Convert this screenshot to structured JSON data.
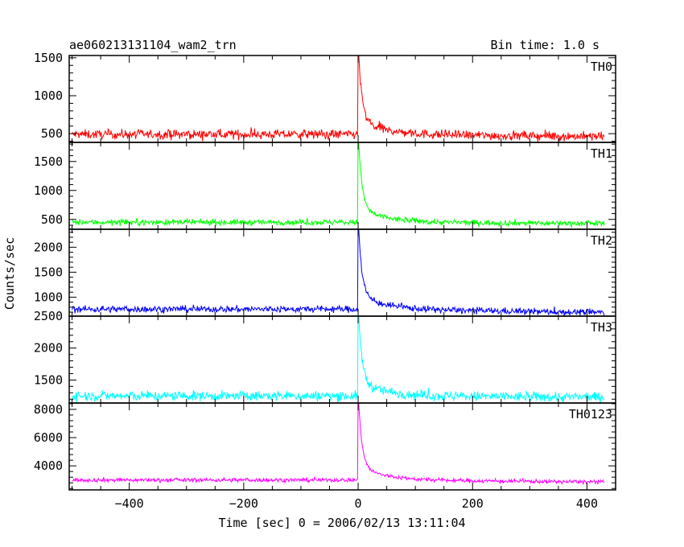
{
  "header": {
    "title": "ae060213131104_wam2_trn",
    "bin_time": "Bin time: 1.0 s"
  },
  "axes": {
    "ylabel": "Counts/sec",
    "xlabel": "Time [sec] 0 = 2006/02/13 13:11:04"
  },
  "chart_data": {
    "type": "line",
    "x_range": [
      -505,
      450
    ],
    "x_data_range": [
      -500,
      430
    ],
    "x_ticks": [
      -400,
      -200,
      0,
      200,
      400
    ],
    "x_tick_labels": [
      "−400",
      "−200",
      "0",
      "200",
      "400"
    ],
    "grid": false,
    "panels": [
      {
        "name": "TH0",
        "color": "#ff0000",
        "ylim": [
          385,
          1530
        ],
        "y_ticks": [
          500,
          1000,
          1500
        ],
        "y_tick_labels": [
          "500",
          "1000",
          "1500"
        ],
        "baseline_pre": 490,
        "baseline_post": 460,
        "peak": 1530,
        "noise": 55
      },
      {
        "name": "TH1",
        "color": "#00ff00",
        "ylim": [
          330,
          1830
        ],
        "y_ticks": [
          500,
          1000,
          1500
        ],
        "y_tick_labels": [
          "500",
          "1000",
          "1500"
        ],
        "baseline_pre": 450,
        "baseline_post": 430,
        "peak": 1830,
        "noise": 45
      },
      {
        "name": "TH2",
        "color": "#0000ff",
        "ylim": [
          620,
          2360
        ],
        "y_ticks": [
          1000,
          1500,
          2000
        ],
        "y_tick_labels": [
          "1000",
          "1500",
          "2000"
        ],
        "baseline_pre": 760,
        "baseline_post": 690,
        "peak": 2360,
        "noise": 60
      },
      {
        "name": "TH3",
        "color": "#00ffff",
        "ylim": [
          1140,
          2500
        ],
        "y_ticks": [
          1500,
          2000,
          2500
        ],
        "y_tick_labels": [
          "1500",
          "2000",
          "2500"
        ],
        "baseline_pre": 1250,
        "baseline_post": 1230,
        "peak": 2500,
        "noise": 70
      },
      {
        "name": "TH0123",
        "color": "#ff00ff",
        "ylim": [
          2300,
          8450
        ],
        "y_ticks": [
          4000,
          6000,
          8000
        ],
        "y_tick_labels": [
          "4000",
          "6000",
          "8000"
        ],
        "baseline_pre": 3000,
        "baseline_post": 2850,
        "peak": 8450,
        "noise": 130
      }
    ]
  }
}
